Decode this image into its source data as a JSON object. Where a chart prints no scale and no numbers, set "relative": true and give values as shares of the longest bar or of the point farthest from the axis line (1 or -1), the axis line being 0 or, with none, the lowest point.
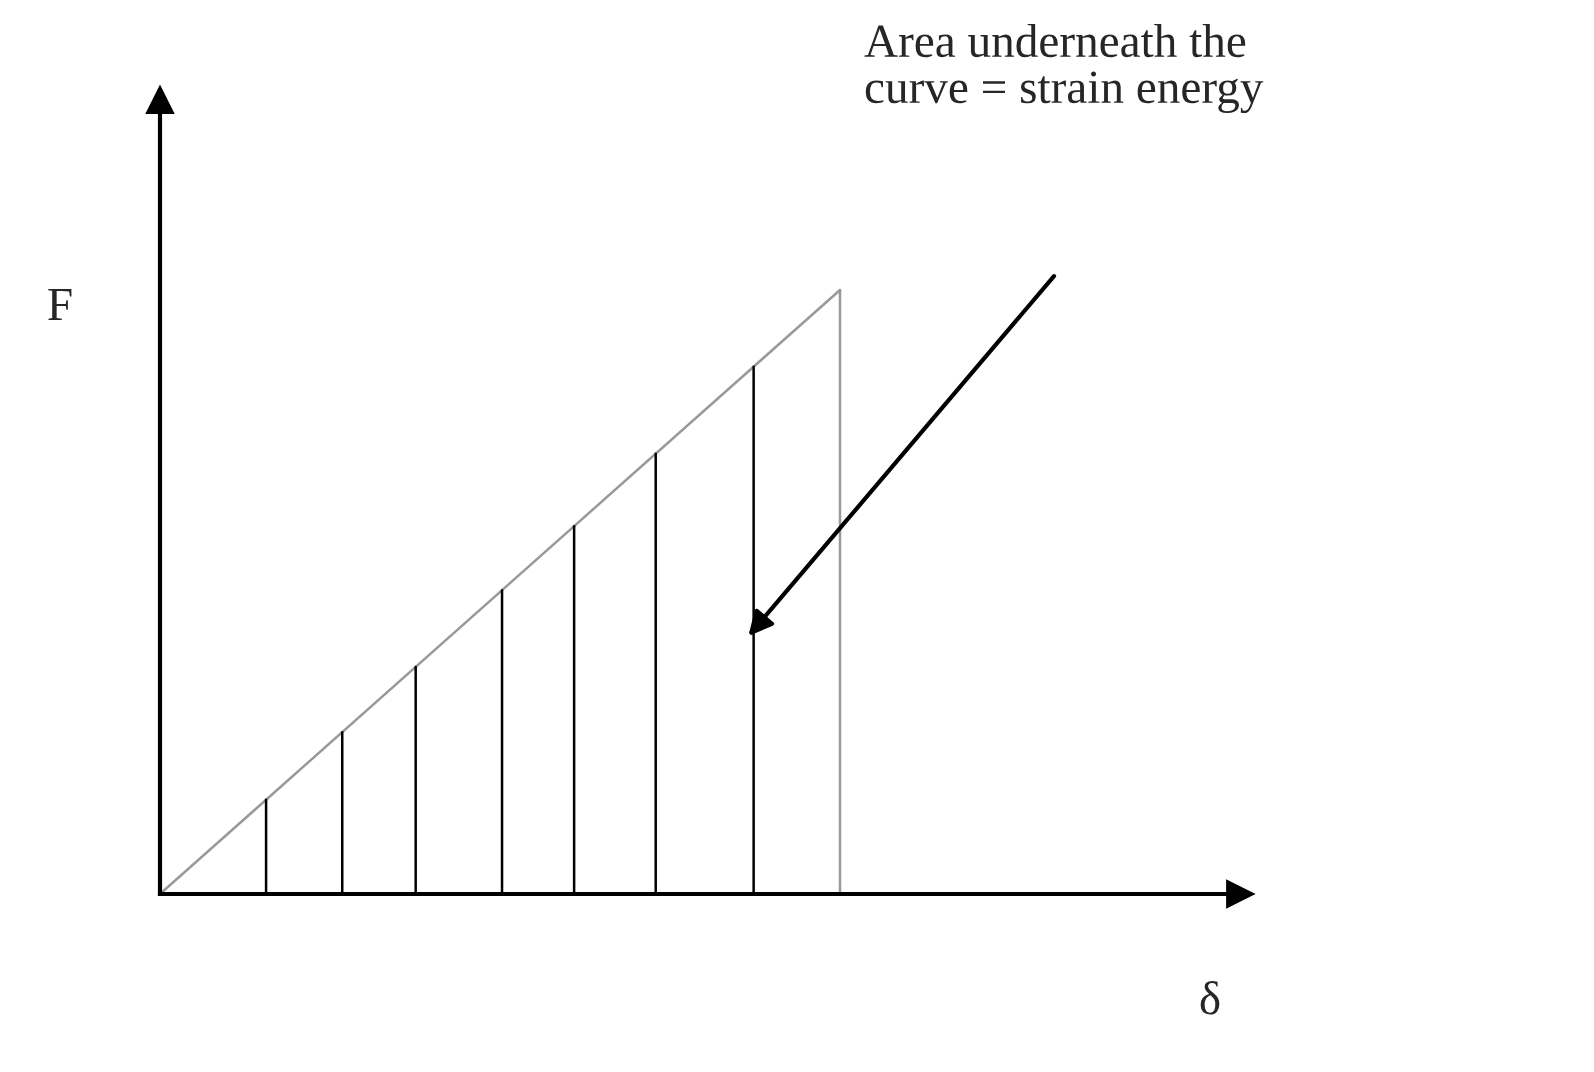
{
  "chart_data": {
    "type": "line",
    "relative": true,
    "categories": [
      null,
      null
    ],
    "values": [
      0,
      1
    ],
    "color": "#999999",
    "xlabel": "δ",
    "ylabel": "F",
    "annotations": [
      "Area underneath the\ncurve = strain energy"
    ]
  }
}
